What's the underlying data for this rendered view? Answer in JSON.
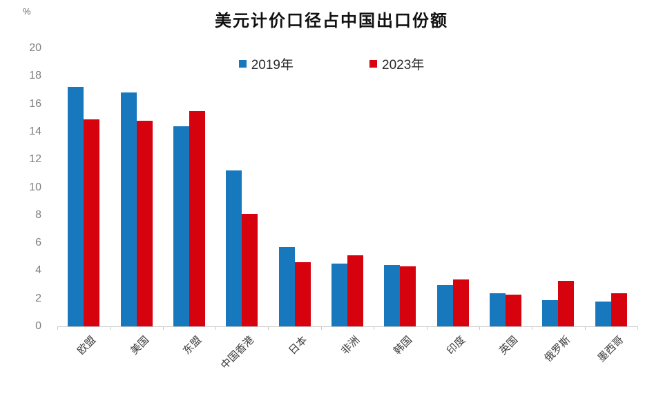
{
  "header": {
    "title": "美元计价口径占中国出口份额",
    "unit_label": "%"
  },
  "colors": {
    "series_2019": "#1878be",
    "series_2023": "#d6030f",
    "axis_line": "#c9c9c9",
    "y_tick_text": "#7f7f7f",
    "x_tick_text": "#3d3d3d"
  },
  "chart_data": {
    "type": "bar",
    "title": "美元计价口径占中国出口份额",
    "unit": "%",
    "categories": [
      "欧盟",
      "美国",
      "东盟",
      "中国香港",
      "日本",
      "非洲",
      "韩国",
      "印度",
      "英国",
      "俄罗斯",
      "墨西哥"
    ],
    "series": [
      {
        "name": "2019年",
        "color": "#1878be",
        "values": [
          17.2,
          16.8,
          14.4,
          11.2,
          5.7,
          4.5,
          4.4,
          3.0,
          2.4,
          1.9,
          1.8
        ]
      },
      {
        "name": "2023年",
        "color": "#d6030f",
        "values": [
          14.9,
          14.8,
          15.5,
          8.1,
          4.6,
          5.1,
          4.3,
          3.4,
          2.3,
          3.3,
          2.4
        ]
      }
    ],
    "ylim": [
      0,
      20
    ],
    "ytick_step": 2,
    "ylabel": "%",
    "xlabel": "",
    "grid": false,
    "legend_position": "top-center",
    "x_label_rotation_deg": 45
  }
}
